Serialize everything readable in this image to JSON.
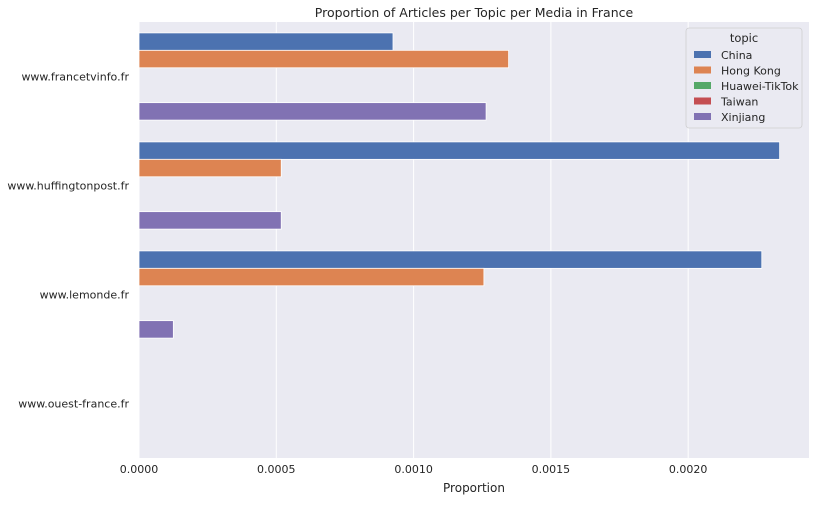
{
  "chart_data": {
    "type": "bar",
    "orientation": "horizontal",
    "title": "Proportion of Articles per Topic per Media in France",
    "xlabel": "Proportion",
    "ylabel": "",
    "xlim": [
      0,
      0.00244
    ],
    "xticks": [
      0,
      0.0005,
      0.001,
      0.0015,
      0.002
    ],
    "xtick_labels": [
      "0.0000",
      "0.0005",
      "0.0010",
      "0.0015",
      "0.0020"
    ],
    "grid": true,
    "legend_title": "topic",
    "legend_position": "top-right",
    "categories": [
      "www.francetvinfo.fr",
      "www.huffingtonpost.fr",
      "www.lemonde.fr",
      "www.ouest-france.fr"
    ],
    "series": [
      {
        "name": "China",
        "color": "#4c72b0",
        "values": [
          0.000925,
          0.002333,
          0.002268,
          0
        ]
      },
      {
        "name": "Hong Kong",
        "color": "#dd8452",
        "values": [
          0.001346,
          0.000518,
          0.001256,
          0
        ]
      },
      {
        "name": "Huawei-TikTok",
        "color": "#55a868",
        "values": [
          0,
          0,
          0,
          0
        ]
      },
      {
        "name": "Taiwan",
        "color": "#c44e52",
        "values": [
          0,
          0,
          0,
          0
        ]
      },
      {
        "name": "Xinjiang",
        "color": "#8172b3",
        "values": [
          0.001264,
          0.000518,
          0.000125,
          0
        ]
      }
    ]
  }
}
